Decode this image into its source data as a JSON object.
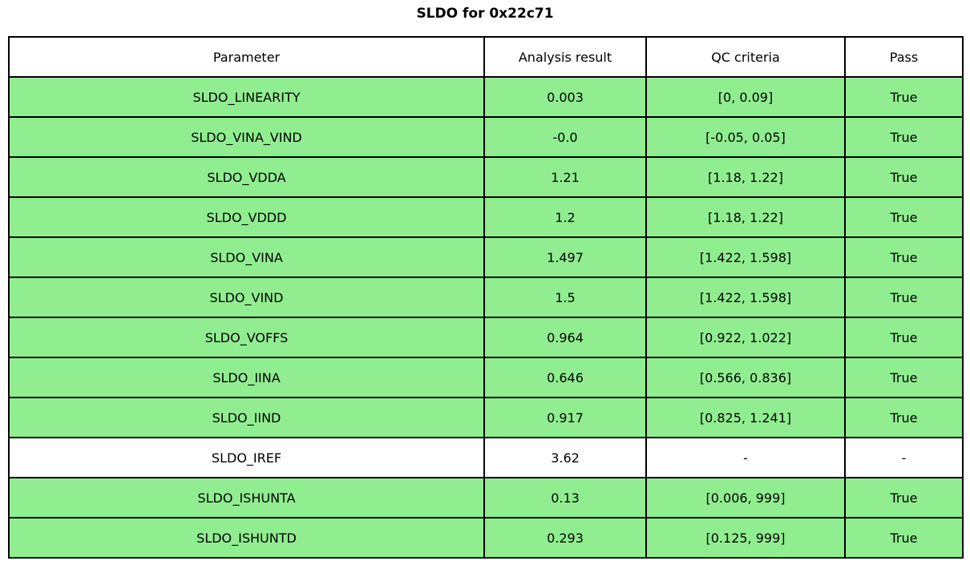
{
  "title": "SLDO for 0x22c71",
  "chart_data": {
    "type": "table",
    "title": "SLDO for 0x22c71",
    "columns": [
      "Parameter",
      "Analysis result",
      "QC criteria",
      "Pass"
    ],
    "rows": [
      {
        "parameter": "SLDO_LINEARITY",
        "analysis_result": "0.003",
        "qc_criteria": "[0, 0.09]",
        "pass": "True",
        "passed": true
      },
      {
        "parameter": "SLDO_VINA_VIND",
        "analysis_result": "-0.0",
        "qc_criteria": "[-0.05, 0.05]",
        "pass": "True",
        "passed": true
      },
      {
        "parameter": "SLDO_VDDA",
        "analysis_result": "1.21",
        "qc_criteria": "[1.18, 1.22]",
        "pass": "True",
        "passed": true
      },
      {
        "parameter": "SLDO_VDDD",
        "analysis_result": "1.2",
        "qc_criteria": "[1.18, 1.22]",
        "pass": "True",
        "passed": true
      },
      {
        "parameter": "SLDO_VINA",
        "analysis_result": "1.497",
        "qc_criteria": "[1.422, 1.598]",
        "pass": "True",
        "passed": true
      },
      {
        "parameter": "SLDO_VIND",
        "analysis_result": "1.5",
        "qc_criteria": "[1.422, 1.598]",
        "pass": "True",
        "passed": true
      },
      {
        "parameter": "SLDO_VOFFS",
        "analysis_result": "0.964",
        "qc_criteria": "[0.922, 1.022]",
        "pass": "True",
        "passed": true
      },
      {
        "parameter": "SLDO_IINA",
        "analysis_result": "0.646",
        "qc_criteria": "[0.566, 0.836]",
        "pass": "True",
        "passed": true
      },
      {
        "parameter": "SLDO_IIND",
        "analysis_result": "0.917",
        "qc_criteria": "[0.825, 1.241]",
        "pass": "True",
        "passed": true
      },
      {
        "parameter": "SLDO_IREF",
        "analysis_result": "3.62",
        "qc_criteria": "-",
        "pass": "-",
        "passed": false
      },
      {
        "parameter": "SLDO_ISHUNTA",
        "analysis_result": "0.13",
        "qc_criteria": "[0.006, 999]",
        "pass": "True",
        "passed": true
      },
      {
        "parameter": "SLDO_ISHUNTD",
        "analysis_result": "0.293",
        "qc_criteria": "[0.125, 999]",
        "pass": "True",
        "passed": true
      }
    ],
    "colors": {
      "pass_row_bg": "#90ee90",
      "neutral_row_bg": "#ffffff",
      "border": "#000000",
      "text": "#000000"
    },
    "layout": {
      "grid": true,
      "cell_text_align": "center",
      "header_bg": "#ffffff"
    }
  }
}
